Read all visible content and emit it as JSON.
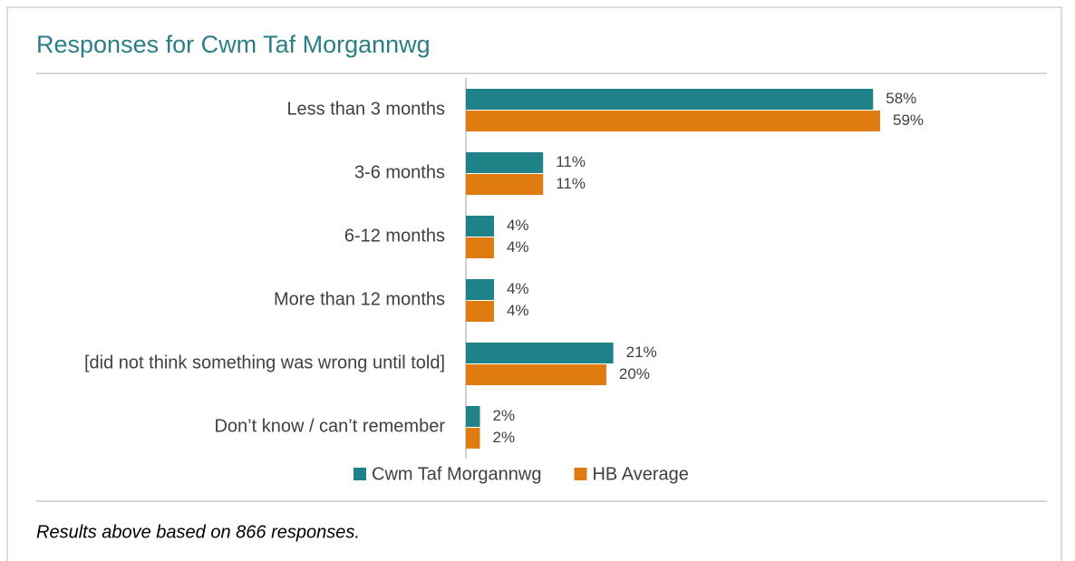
{
  "chart_data": {
    "type": "bar",
    "orientation": "horizontal",
    "title": "Responses for Cwm Taf Morgannwg",
    "categories": [
      "Less than 3 months",
      "3-6 months",
      "6-12 months",
      "More than 12 months",
      "[did not think something was wrong until told]",
      "Don’t know / can’t remember"
    ],
    "series": [
      {
        "name": "Cwm Taf Morgannwg",
        "color": "#1f8288",
        "values": [
          58,
          11,
          4,
          4,
          21,
          2
        ],
        "value_labels": [
          "58%",
          "11%",
          "4%",
          "4%",
          "21%",
          "2%"
        ]
      },
      {
        "name": "HB Average",
        "color": "#e07b10",
        "values": [
          59,
          11,
          4,
          4,
          20,
          2
        ],
        "value_labels": [
          "59%",
          "11%",
          "4%",
          "4%",
          "20%",
          "2%"
        ]
      }
    ],
    "legend": "bottom",
    "footnote": "Results above based on 866 responses."
  }
}
